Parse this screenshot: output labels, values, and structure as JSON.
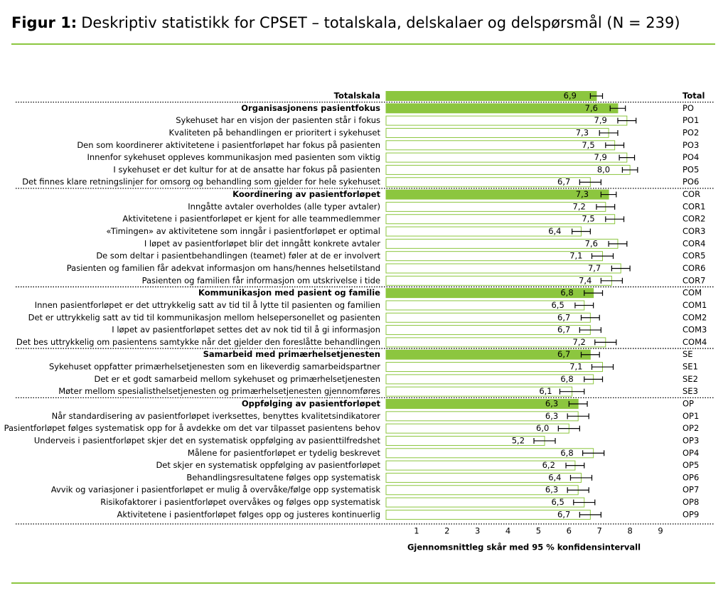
{
  "chart_data": {
    "type": "bar",
    "orientation": "horizontal",
    "title_label": "Figur 1:",
    "title": "Deskriptiv statistikk for CPSET – totalskala, delskalaer og delspørsmål (N = 239)",
    "xlabel": "Gjennomsnittleg skår med 95 % konfidensintervall",
    "categories": [
      "Totalskala",
      "Organisasjonens pasientfokus",
      "Sykehuset har en visjon der pasienten står i fokus",
      "Kvaliteten på behandlingen er prioritert i sykehuset",
      "Den som koordinerer aktivitetene i pasientforløpet har fokus på pasienten",
      "Innenfor sykehuset oppleves kommunikasjon med pasienten som viktig",
      "I sykehuset er det kultur for at de ansatte har fokus på pasienten",
      "Det finnes klare retningslinjer for omsorg og behandling som gjelder for hele sykehuset",
      "Koordinering av pasientforløpet",
      "Inngåtte avtaler overholdes (alle typer avtaler)",
      "Aktivitetene i pasientforløpet er kjent for alle teammedlemmer",
      "«Timingen» av aktivitetene som inngår i pasientforløpet er optimal",
      "I løpet av pasientforløpet blir det inngått konkrete avtaler",
      "De som deltar i pasientbehandlingen (teamet) føler at de er involvert",
      "Pasienten og familien får adekvat informasjon om hans/hennes helsetilstand",
      "Pasienten og familien får informasjon om utskrivelse i tide",
      "Kommunikasjon med pasient og familie",
      "Innen pasientforløpet er det uttrykkelig satt av tid til å lytte til pasienten og familien",
      "Det er uttrykkelig satt av tid til kommunikasjon mellom helsepersonellet og pasienten",
      "I løpet av pasientforløpet settes det av nok tid til å gi informasjon",
      "Det bes uttrykkelig om pasientens samtykke når det gjelder den foreslåtte behandlingen",
      "Samarbeid med primærhelsetjenesten",
      "Sykehuset oppfatter primærhelsetjenesten som en likeverdig samarbeidspartner",
      "Det er et godt samarbeid mellom sykehuset og primærhelsetjenesten",
      "Møter mellom spesialisthelsetjenesten og primærhelsetjenesten gjennomføres",
      "Oppfølging av pasientforløpet",
      "Når standardisering av pasientforløpet iverksettes, benyttes kvalitetsindikatorer",
      "Pasientforløpet følges systematisk opp for å avdekke om det var tilpasset pasientens behov",
      "Underveis i pasientforløpet skjer det en systematisk oppfølging av pasienttilfredshet",
      "Målene for pasientforløpet er tydelig beskrevet",
      "Det skjer en systematisk oppfølging av pasientforløpet",
      "Behandlingsresultatene følges opp systematisk",
      "Avvik og variasjoner i pasientforløpet er mulig å overvåke/følge opp systematisk",
      "Risikofaktorer i pasientforløpet overvåkes og følges opp systematisk",
      "Aktivitetene i pasientforløpet følges opp og justeres kontinuerlig"
    ],
    "codes": [
      "Total",
      "PO",
      "PO1",
      "PO2",
      "PO3",
      "PO4",
      "PO5",
      "PO6",
      "COR",
      "COR1",
      "COR2",
      "COR3",
      "COR4",
      "COR5",
      "COR6",
      "COR7",
      "COM",
      "COM1",
      "COM2",
      "COM3",
      "COM4",
      "SE",
      "SE1",
      "SE2",
      "SE3",
      "OP",
      "OP1",
      "OP2",
      "OP3",
      "OP4",
      "OP5",
      "OP6",
      "OP7",
      "OP8",
      "OP9"
    ],
    "emphasis": [
      true,
      true,
      false,
      false,
      false,
      false,
      false,
      false,
      true,
      false,
      false,
      false,
      false,
      false,
      false,
      false,
      true,
      false,
      false,
      false,
      false,
      true,
      false,
      false,
      false,
      true,
      false,
      false,
      false,
      false,
      false,
      false,
      false,
      false,
      false
    ],
    "values": [
      6.9,
      7.6,
      7.9,
      7.3,
      7.5,
      7.9,
      8.0,
      6.7,
      7.3,
      7.2,
      7.5,
      6.4,
      7.6,
      7.1,
      7.7,
      7.4,
      6.8,
      6.5,
      6.7,
      6.7,
      7.2,
      6.7,
      7.1,
      6.8,
      6.1,
      6.3,
      6.3,
      6.0,
      5.2,
      6.8,
      6.2,
      6.4,
      6.3,
      6.5,
      6.7
    ],
    "value_labels": [
      "6,9",
      "7,6",
      "7,9",
      "7,3",
      "7,5",
      "7,9",
      "8,0",
      "6,7",
      "7,3",
      "7,2",
      "7,5",
      "6,4",
      "7,6",
      "7,1",
      "7,7",
      "7,4",
      "6,8",
      "6,5",
      "6,7",
      "6,7",
      "7,2",
      "6,7",
      "7,1",
      "6,8",
      "6,1",
      "6,3",
      "6,3",
      "6,0",
      "5,2",
      "6,8",
      "6,2",
      "6,4",
      "6,3",
      "6,5",
      "6,7"
    ],
    "errors": [
      0.2,
      0.25,
      0.3,
      0.3,
      0.3,
      0.25,
      0.25,
      0.35,
      0.25,
      0.3,
      0.3,
      0.3,
      0.3,
      0.35,
      0.3,
      0.35,
      0.3,
      0.3,
      0.3,
      0.35,
      0.35,
      0.3,
      0.35,
      0.3,
      0.4,
      0.3,
      0.35,
      0.35,
      0.35,
      0.35,
      0.3,
      0.35,
      0.35,
      0.35,
      0.35
    ],
    "color": "#8cc63f",
    "xlim": [
      0,
      9
    ],
    "xticks": [
      1,
      2,
      3,
      4,
      5,
      6,
      7,
      8,
      9
    ]
  }
}
